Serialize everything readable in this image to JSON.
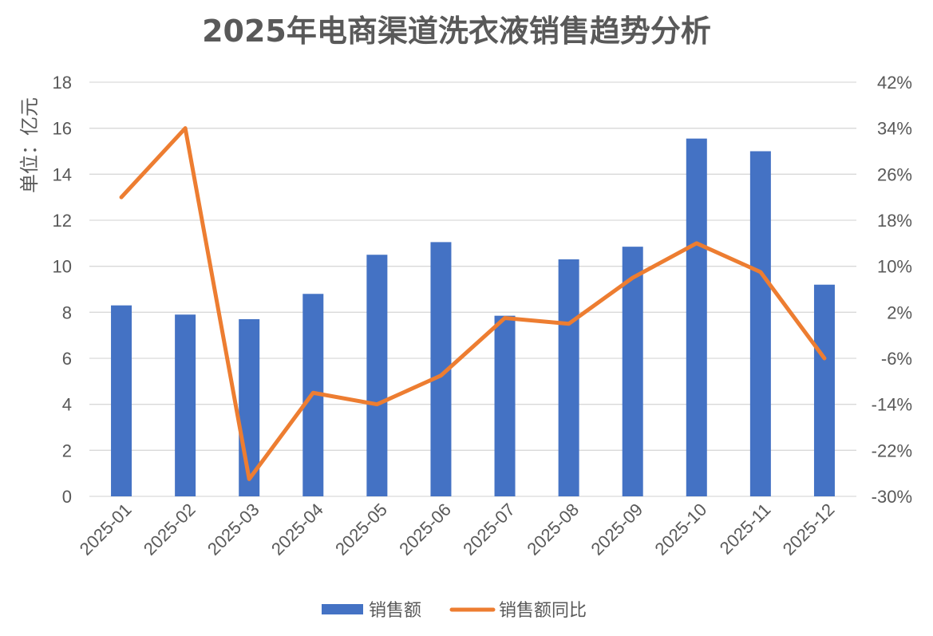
{
  "chart_data": {
    "type": "bar",
    "title": "2025年电商渠道洗衣液销售趋势分析",
    "ylabel": "单位：亿元",
    "categories": [
      "2025-01",
      "2025-02",
      "2025-03",
      "2025-04",
      "2025-05",
      "2025-06",
      "2025-07",
      "2025-08",
      "2025-09",
      "2025-10",
      "2025-11",
      "2025-12"
    ],
    "series": [
      {
        "name": "销售额",
        "type": "bar",
        "axis": "left",
        "color": "#4472C4",
        "values": [
          8.3,
          7.9,
          7.7,
          8.8,
          10.5,
          11.05,
          7.85,
          10.3,
          10.85,
          15.55,
          15.0,
          9.2
        ]
      },
      {
        "name": "销售额同比",
        "type": "line",
        "axis": "right",
        "color": "#ED7D31",
        "values": [
          22,
          34,
          -27,
          -12,
          -14,
          -9,
          1,
          0,
          8,
          14,
          9,
          -6
        ]
      }
    ],
    "y_left": {
      "min": 0,
      "max": 18,
      "ticks": [
        "0",
        "2",
        "4",
        "6",
        "8",
        "10",
        "12",
        "14",
        "16",
        "18"
      ]
    },
    "y_right": {
      "min": -30,
      "max": 42,
      "ticks": [
        "-30%",
        "-22%",
        "-14%",
        "-6%",
        "2%",
        "10%",
        "18%",
        "26%",
        "34%",
        "42%"
      ]
    },
    "grid": true,
    "legend": "bottom"
  }
}
